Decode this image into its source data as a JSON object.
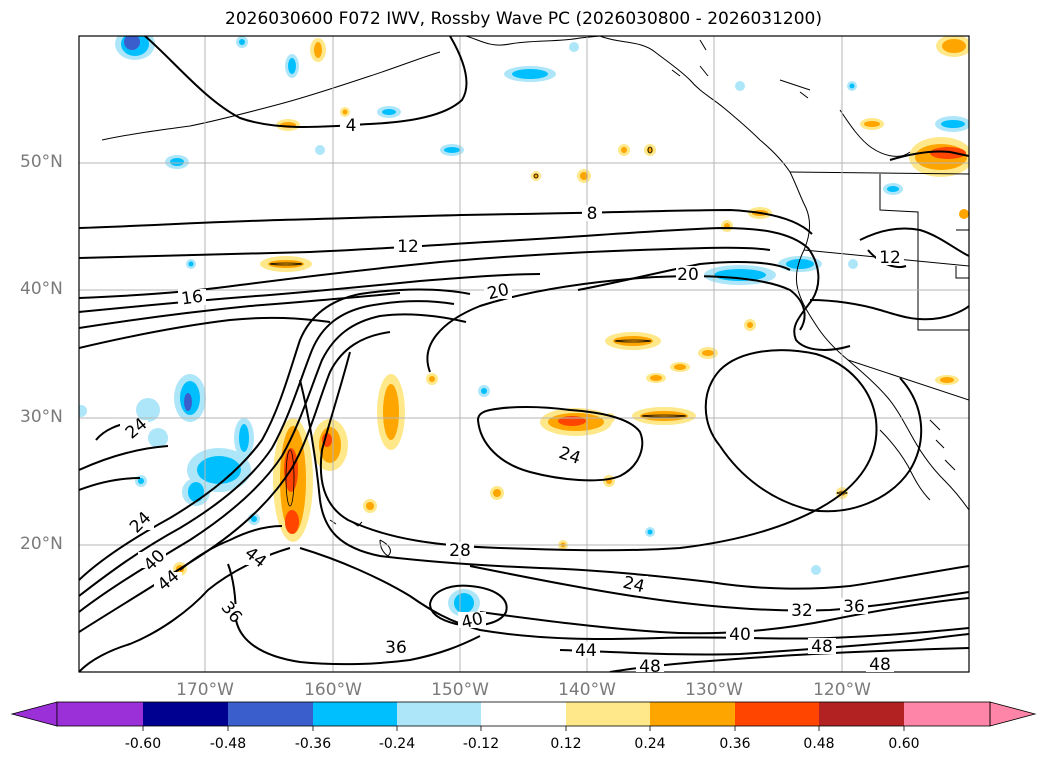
{
  "title": "2026030600 F072 IWV, Rossby Wave PC (2026030800 - 2026031200)",
  "lat_labels": [
    "50°N",
    "40°N",
    "30°N",
    "20°N"
  ],
  "lon_labels": [
    "170°W",
    "160°W",
    "150°W",
    "140°W",
    "130°W",
    "120°W"
  ],
  "contour_labels": [
    "4",
    "8",
    "12",
    "12",
    "16",
    "20",
    "20",
    "24",
    "24",
    "24",
    "28",
    "24",
    "32",
    "36",
    "36",
    "36",
    "40",
    "40",
    "40",
    "44",
    "44",
    "44",
    "48",
    "48",
    "48"
  ],
  "colorbar": {
    "ticks": [
      "-0.60",
      "-0.48",
      "-0.36",
      "-0.24",
      "-0.12",
      "0.12",
      "0.24",
      "0.36",
      "0.48",
      "0.60"
    ],
    "colors": [
      "#9b30d9",
      "#000090",
      "#3a5fcd",
      "#00bfff",
      "#aee6f9",
      "#ffffff",
      "#ffe88a",
      "#ffa500",
      "#ff4500",
      "#b22222",
      "#ff85a8",
      "#ff85a8"
    ]
  }
}
